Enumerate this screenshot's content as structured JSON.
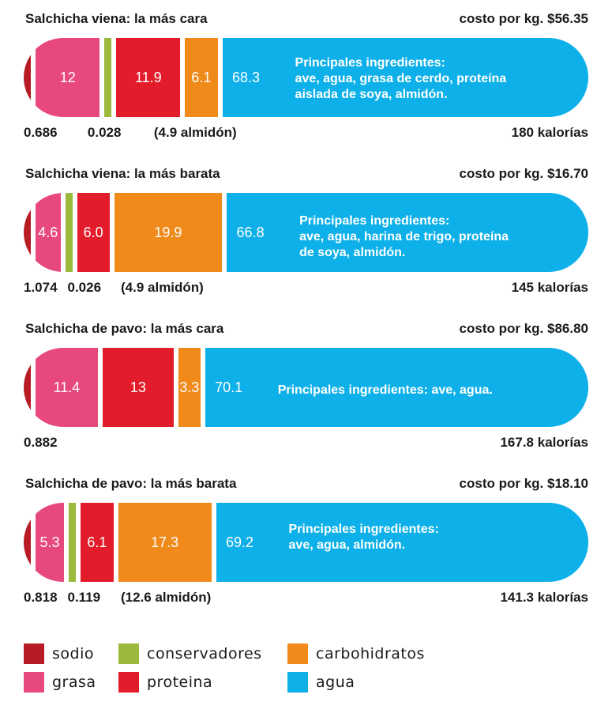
{
  "colors": {
    "sodio": "#b71c24",
    "conservadores": "#9bb93a",
    "carbohidratos": "#ef8a1b",
    "grasa": "#e7497c",
    "proteina": "#e21c2a",
    "agua": "#0db0e8"
  },
  "chart_data": [
    {
      "type": "bar",
      "title": "Salchicha viena: la más cara",
      "cost_label": "costo por kg. $56.35",
      "calories_label": "180 kalorías",
      "ingredients": [
        "Principales ingredientes:",
        "ave, agua, grasa de cerdo, proteína",
        "aislada de soya, almidón."
      ],
      "segments": [
        {
          "name": "sodio",
          "value": 0.686,
          "label": "0.686"
        },
        {
          "name": "grasa",
          "value": 12,
          "label": "12"
        },
        {
          "name": "conservadores",
          "value": 0.028,
          "label": "0.028"
        },
        {
          "name": "proteina",
          "value": 11.9,
          "label": "11.9"
        },
        {
          "name": "carbohidratos",
          "value": 6.1,
          "label": "6.1"
        },
        {
          "name": "agua",
          "value": 68.3,
          "label": "68.3"
        }
      ],
      "almidon_label": "(4.9 almidón)"
    },
    {
      "type": "bar",
      "title": "Salchicha viena: la más barata",
      "cost_label": "costo por kg. $16.70",
      "calories_label": "145 kalorías",
      "ingredients": [
        "Principales ingredientes:",
        "ave, agua, harina de trigo, proteína",
        "de soya, almidón."
      ],
      "segments": [
        {
          "name": "sodio",
          "value": 1.074,
          "label": "1.074"
        },
        {
          "name": "grasa",
          "value": 4.6,
          "label": "4.6"
        },
        {
          "name": "conservadores",
          "value": 0.026,
          "label": "0.026"
        },
        {
          "name": "proteina",
          "value": 6.0,
          "label": "6.0"
        },
        {
          "name": "carbohidratos",
          "value": 19.9,
          "label": "19.9"
        },
        {
          "name": "agua",
          "value": 66.8,
          "label": "66.8"
        }
      ],
      "almidon_label": "(4.9 almidón)"
    },
    {
      "type": "bar",
      "title": "Salchicha de pavo: la más cara",
      "cost_label": "costo por kg. $86.80",
      "calories_label": "167.8 kalorías",
      "ingredients": [
        "Principales ingredientes: ave, agua."
      ],
      "segments": [
        {
          "name": "sodio",
          "value": 0.882,
          "label": "0.882"
        },
        {
          "name": "grasa",
          "value": 11.4,
          "label": "11.4"
        },
        {
          "name": "proteina",
          "value": 13,
          "label": "13"
        },
        {
          "name": "carbohidratos",
          "value": 3.3,
          "label": "3.3"
        },
        {
          "name": "agua",
          "value": 70.1,
          "label": "70.1"
        }
      ],
      "almidon_label": ""
    },
    {
      "type": "bar",
      "title": "Salchicha de pavo: la más barata",
      "cost_label": "costo por kg. $18.10",
      "calories_label": "141.3 kalorías",
      "ingredients": [
        "Principales ingredientes:",
        "ave, agua, almidón."
      ],
      "segments": [
        {
          "name": "sodio",
          "value": 0.818,
          "label": "0.818"
        },
        {
          "name": "grasa",
          "value": 5.3,
          "label": "5.3"
        },
        {
          "name": "conservadores",
          "value": 0.119,
          "label": "0.119"
        },
        {
          "name": "proteina",
          "value": 6.1,
          "label": "6.1"
        },
        {
          "name": "carbohidratos",
          "value": 17.3,
          "label": "17.3"
        },
        {
          "name": "agua",
          "value": 69.2,
          "label": "69.2"
        }
      ],
      "almidon_label": "(12.6 almidón)"
    }
  ],
  "legend": [
    {
      "key": "sodio",
      "label": "sodio"
    },
    {
      "key": "conservadores",
      "label": "conservadores"
    },
    {
      "key": "carbohidratos",
      "label": "carbohidratos"
    },
    {
      "key": "grasa",
      "label": "grasa"
    },
    {
      "key": "proteina",
      "label": "proteina"
    },
    {
      "key": "agua",
      "label": "agua"
    }
  ]
}
